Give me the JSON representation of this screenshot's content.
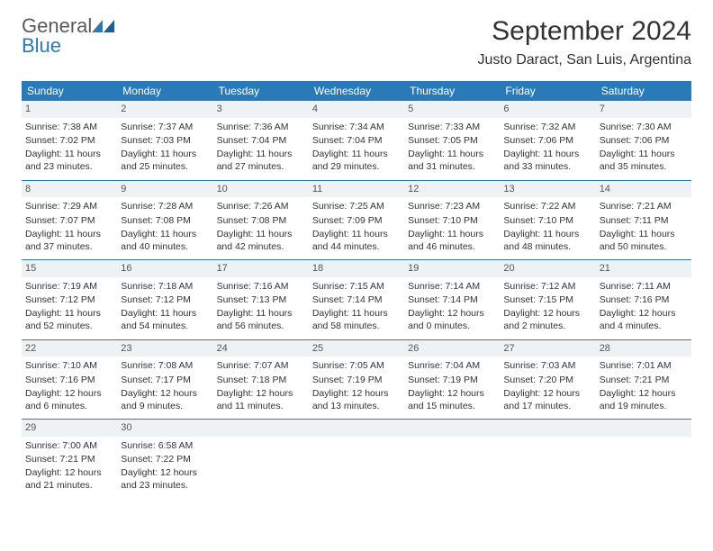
{
  "logo": {
    "general": "General",
    "blue": "Blue"
  },
  "title": "September 2024",
  "location": "Justo Daract, San Luis, Argentina",
  "weekdays": [
    "Sunday",
    "Monday",
    "Tuesday",
    "Wednesday",
    "Thursday",
    "Friday",
    "Saturday"
  ],
  "colors": {
    "header_bg": "#2a7ab8",
    "header_fg": "#ffffff",
    "daynum_bg": "#eef2f5",
    "border": "#2a7ab8"
  },
  "fonts": {
    "title_size": 30,
    "location_size": 16,
    "weekday_size": 12,
    "cell_size": 10.5,
    "daynum_size": 11
  },
  "days": [
    {
      "n": 1,
      "sr": "7:38 AM",
      "ss": "7:02 PM",
      "dl": "11 hours and 23 minutes."
    },
    {
      "n": 2,
      "sr": "7:37 AM",
      "ss": "7:03 PM",
      "dl": "11 hours and 25 minutes."
    },
    {
      "n": 3,
      "sr": "7:36 AM",
      "ss": "7:04 PM",
      "dl": "11 hours and 27 minutes."
    },
    {
      "n": 4,
      "sr": "7:34 AM",
      "ss": "7:04 PM",
      "dl": "11 hours and 29 minutes."
    },
    {
      "n": 5,
      "sr": "7:33 AM",
      "ss": "7:05 PM",
      "dl": "11 hours and 31 minutes."
    },
    {
      "n": 6,
      "sr": "7:32 AM",
      "ss": "7:06 PM",
      "dl": "11 hours and 33 minutes."
    },
    {
      "n": 7,
      "sr": "7:30 AM",
      "ss": "7:06 PM",
      "dl": "11 hours and 35 minutes."
    },
    {
      "n": 8,
      "sr": "7:29 AM",
      "ss": "7:07 PM",
      "dl": "11 hours and 37 minutes."
    },
    {
      "n": 9,
      "sr": "7:28 AM",
      "ss": "7:08 PM",
      "dl": "11 hours and 40 minutes."
    },
    {
      "n": 10,
      "sr": "7:26 AM",
      "ss": "7:08 PM",
      "dl": "11 hours and 42 minutes."
    },
    {
      "n": 11,
      "sr": "7:25 AM",
      "ss": "7:09 PM",
      "dl": "11 hours and 44 minutes."
    },
    {
      "n": 12,
      "sr": "7:23 AM",
      "ss": "7:10 PM",
      "dl": "11 hours and 46 minutes."
    },
    {
      "n": 13,
      "sr": "7:22 AM",
      "ss": "7:10 PM",
      "dl": "11 hours and 48 minutes."
    },
    {
      "n": 14,
      "sr": "7:21 AM",
      "ss": "7:11 PM",
      "dl": "11 hours and 50 minutes."
    },
    {
      "n": 15,
      "sr": "7:19 AM",
      "ss": "7:12 PM",
      "dl": "11 hours and 52 minutes."
    },
    {
      "n": 16,
      "sr": "7:18 AM",
      "ss": "7:12 PM",
      "dl": "11 hours and 54 minutes."
    },
    {
      "n": 17,
      "sr": "7:16 AM",
      "ss": "7:13 PM",
      "dl": "11 hours and 56 minutes."
    },
    {
      "n": 18,
      "sr": "7:15 AM",
      "ss": "7:14 PM",
      "dl": "11 hours and 58 minutes."
    },
    {
      "n": 19,
      "sr": "7:14 AM",
      "ss": "7:14 PM",
      "dl": "12 hours and 0 minutes."
    },
    {
      "n": 20,
      "sr": "7:12 AM",
      "ss": "7:15 PM",
      "dl": "12 hours and 2 minutes."
    },
    {
      "n": 21,
      "sr": "7:11 AM",
      "ss": "7:16 PM",
      "dl": "12 hours and 4 minutes."
    },
    {
      "n": 22,
      "sr": "7:10 AM",
      "ss": "7:16 PM",
      "dl": "12 hours and 6 minutes."
    },
    {
      "n": 23,
      "sr": "7:08 AM",
      "ss": "7:17 PM",
      "dl": "12 hours and 9 minutes."
    },
    {
      "n": 24,
      "sr": "7:07 AM",
      "ss": "7:18 PM",
      "dl": "12 hours and 11 minutes."
    },
    {
      "n": 25,
      "sr": "7:05 AM",
      "ss": "7:19 PM",
      "dl": "12 hours and 13 minutes."
    },
    {
      "n": 26,
      "sr": "7:04 AM",
      "ss": "7:19 PM",
      "dl": "12 hours and 15 minutes."
    },
    {
      "n": 27,
      "sr": "7:03 AM",
      "ss": "7:20 PM",
      "dl": "12 hours and 17 minutes."
    },
    {
      "n": 28,
      "sr": "7:01 AM",
      "ss": "7:21 PM",
      "dl": "12 hours and 19 minutes."
    },
    {
      "n": 29,
      "sr": "7:00 AM",
      "ss": "7:21 PM",
      "dl": "12 hours and 21 minutes."
    },
    {
      "n": 30,
      "sr": "6:58 AM",
      "ss": "7:22 PM",
      "dl": "12 hours and 23 minutes."
    }
  ],
  "labels": {
    "sunrise": "Sunrise:",
    "sunset": "Sunset:",
    "daylight": "Daylight:"
  }
}
